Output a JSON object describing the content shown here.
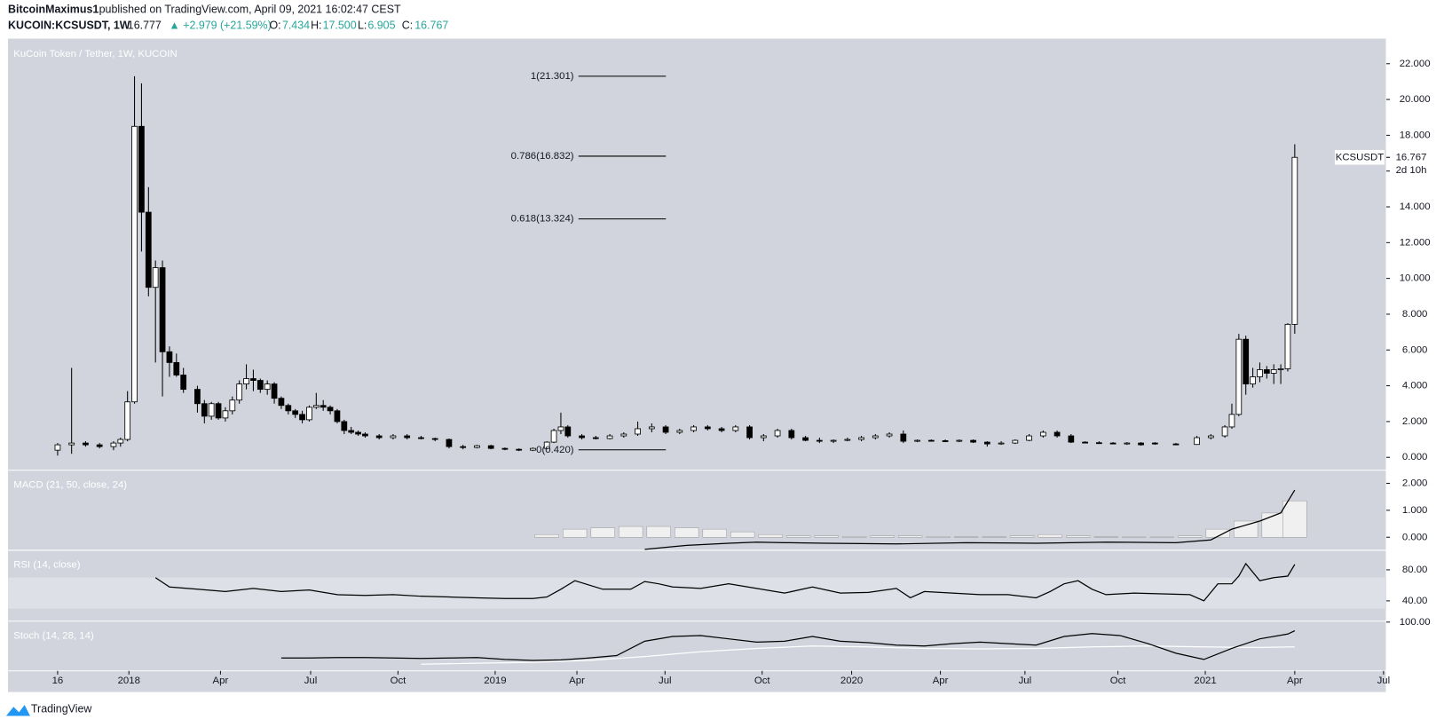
{
  "header": {
    "publisher": "BitcoinMaximus1",
    "published": "published on TradingView.com, April 09, 2021 16:02:47 CEST",
    "symbol": "KUCOIN:KCSUSDT, 1W",
    "last": "16.777",
    "change": "▲ +2.979 (+21.59%)",
    "o_label": "O:",
    "o": "7.434",
    "h_label": "H:",
    "h": "17.500",
    "l_label": "L:",
    "l": "6.905",
    "c_label": "C:",
    "c": "16.767"
  },
  "footer": {
    "brand": "TradingView"
  },
  "chart_data": [
    {
      "type": "candlestick",
      "title": "KuCoin Token / Tether, 1W, KUCOIN",
      "axis_unit": "USDT",
      "up_color": "#ffffff",
      "down_color": "#000000",
      "xlim": [
        -7.1,
        190.1
      ],
      "ylim": [
        -0.67,
        23.4
      ],
      "xticks": [
        {
          "value": 0,
          "label": "16"
        },
        {
          "value": 10.2,
          "label": "2018"
        },
        {
          "value": 23.3,
          "label": "Apr"
        },
        {
          "value": 36.2,
          "label": "Jul"
        },
        {
          "value": 48.7,
          "label": "Oct"
        },
        {
          "value": 62.6,
          "label": "2019"
        },
        {
          "value": 74.3,
          "label": "Apr"
        },
        {
          "value": 86.9,
          "label": "Jul"
        },
        {
          "value": 100.8,
          "label": "Oct"
        },
        {
          "value": 113.6,
          "label": "2020"
        },
        {
          "value": 126.3,
          "label": "Apr"
        },
        {
          "value": 138.4,
          "label": "Jul"
        },
        {
          "value": 151.7,
          "label": "Oct"
        },
        {
          "value": 164.2,
          "label": "2021"
        },
        {
          "value": 177,
          "label": "Apr"
        },
        {
          "value": 189.7,
          "label": "Jul"
        }
      ],
      "yticks": [
        {
          "value": 0,
          "label": "0.000"
        },
        {
          "value": 2,
          "label": "2.000"
        },
        {
          "value": 4,
          "label": "4.000"
        },
        {
          "value": 6,
          "label": "6.000"
        },
        {
          "value": 8,
          "label": "8.000"
        },
        {
          "value": 10,
          "label": "10.000"
        },
        {
          "value": 12,
          "label": "12.000"
        },
        {
          "value": 14,
          "label": "14.000"
        },
        {
          "value": 16,
          "label": "16.000"
        },
        {
          "value": 18,
          "label": "18.000"
        },
        {
          "value": 20,
          "label": "20.000"
        },
        {
          "value": 22,
          "label": "22.000"
        }
      ],
      "x": [
        0,
        2,
        4,
        6,
        8,
        9,
        10,
        11,
        12,
        13,
        14,
        15,
        16,
        17,
        18,
        20,
        21,
        22,
        23,
        24,
        25,
        26,
        27,
        28,
        29,
        30,
        31,
        32,
        33,
        34,
        35,
        36,
        37,
        38,
        39,
        40,
        41,
        42,
        43,
        44,
        46,
        48,
        50,
        52,
        54,
        56,
        58,
        60,
        62,
        64,
        66,
        68,
        70,
        71,
        72,
        73,
        75,
        77,
        79,
        81,
        83,
        85,
        87,
        89,
        91,
        93,
        95,
        97,
        99,
        101,
        103,
        105,
        107,
        109,
        111,
        113,
        115,
        117,
        119,
        121,
        123,
        125,
        127,
        129,
        131,
        133,
        135,
        137,
        139,
        141,
        143,
        145,
        147,
        149,
        151,
        153,
        155,
        157,
        160,
        163,
        165,
        167,
        168,
        169,
        170,
        171,
        172,
        173,
        174,
        175,
        176,
        177
      ],
      "open": [
        0.4,
        0.7,
        0.8,
        0.7,
        0.6,
        0.8,
        1.0,
        3.1,
        18.5,
        13.7,
        9.5,
        10.6,
        5.9,
        5.3,
        4.6,
        3.8,
        3.0,
        2.3,
        3.0,
        2.2,
        2.6,
        3.2,
        4.1,
        4.4,
        4.3,
        3.8,
        4.1,
        3.3,
        2.9,
        2.6,
        2.4,
        2.1,
        2.8,
        2.9,
        2.8,
        2.6,
        2.0,
        1.5,
        1.4,
        1.3,
        1.2,
        1.1,
        1.2,
        1.1,
        1.05,
        1.0,
        0.6,
        0.55,
        0.65,
        0.5,
        0.45,
        0.4,
        0.5,
        0.85,
        1.5,
        1.7,
        1.2,
        1.1,
        1.05,
        1.2,
        1.3,
        1.6,
        1.7,
        1.4,
        1.5,
        1.7,
        1.6,
        1.5,
        1.7,
        1.1,
        1.2,
        1.5,
        1.1,
        0.95,
        0.9,
        0.95,
        1.0,
        1.1,
        1.2,
        1.3,
        0.9,
        0.95,
        0.93,
        0.9,
        0.95,
        0.85,
        0.75,
        0.8,
        0.95,
        1.2,
        1.4,
        1.2,
        0.85,
        0.82,
        0.8,
        0.78,
        0.8,
        0.8,
        0.75,
        0.72,
        1.1,
        1.2,
        1.7,
        2.4,
        6.6,
        4.1,
        4.5,
        4.9,
        4.7,
        4.9,
        4.95,
        7.434
      ],
      "high": [
        0.8,
        5.0,
        0.9,
        0.8,
        0.9,
        1.1,
        3.7,
        21.3,
        20.9,
        15.1,
        11.0,
        11.0,
        6.2,
        5.8,
        5.0,
        4.0,
        3.2,
        3.1,
        3.1,
        2.8,
        3.4,
        4.3,
        5.2,
        4.9,
        4.4,
        4.3,
        4.2,
        3.4,
        3.0,
        2.7,
        2.6,
        2.9,
        3.6,
        3.2,
        2.9,
        2.7,
        2.1,
        1.7,
        1.5,
        1.4,
        1.3,
        1.3,
        1.3,
        1.2,
        1.1,
        1.05,
        0.7,
        0.7,
        0.7,
        0.55,
        0.5,
        0.55,
        0.9,
        1.6,
        2.5,
        1.8,
        1.3,
        1.2,
        1.3,
        1.4,
        2.0,
        1.9,
        1.8,
        1.6,
        1.8,
        1.8,
        1.7,
        1.8,
        1.8,
        1.3,
        1.6,
        1.6,
        1.2,
        1.1,
        1.0,
        1.1,
        1.2,
        1.3,
        1.4,
        1.5,
        1.0,
        1.0,
        1.0,
        1.0,
        1.0,
        0.9,
        0.9,
        1.0,
        1.3,
        1.5,
        1.5,
        1.3,
        0.9,
        0.9,
        0.85,
        0.85,
        0.85,
        0.85,
        0.8,
        1.2,
        1.3,
        1.8,
        3.0,
        6.9,
        6.8,
        5.0,
        5.3,
        5.1,
        5.2,
        5.2,
        7.5,
        17.5
      ],
      "low": [
        0.1,
        0.2,
        0.6,
        0.5,
        0.4,
        0.6,
        0.9,
        3.0,
        11.5,
        9.0,
        5.3,
        3.4,
        4.5,
        4.5,
        3.6,
        2.5,
        1.9,
        2.1,
        2.1,
        2.0,
        2.4,
        3.0,
        3.8,
        3.7,
        3.6,
        3.5,
        3.0,
        2.7,
        2.4,
        2.2,
        1.9,
        2.0,
        2.7,
        2.6,
        2.4,
        1.9,
        1.3,
        1.3,
        1.2,
        1.1,
        1.0,
        1.0,
        1.0,
        1.0,
        0.9,
        0.5,
        0.45,
        0.5,
        0.45,
        0.4,
        0.35,
        0.35,
        0.45,
        0.8,
        1.3,
        1.1,
        1.0,
        1.0,
        1.0,
        1.1,
        1.2,
        1.4,
        1.3,
        1.3,
        1.4,
        1.5,
        1.4,
        1.4,
        1.0,
        0.9,
        1.1,
        1.0,
        0.9,
        0.8,
        0.8,
        0.9,
        0.9,
        1.0,
        1.1,
        0.8,
        0.85,
        0.9,
        0.85,
        0.85,
        0.8,
        0.6,
        0.7,
        0.75,
        0.9,
        1.1,
        1.1,
        0.8,
        0.8,
        0.75,
        0.75,
        0.7,
        0.65,
        0.7,
        0.7,
        0.7,
        1.0,
        1.1,
        1.6,
        2.3,
        3.5,
        3.9,
        4.2,
        4.4,
        4.1,
        4.1,
        4.8,
        6.905
      ],
      "close": [
        0.7,
        0.8,
        0.7,
        0.6,
        0.8,
        1.0,
        3.1,
        18.5,
        13.7,
        9.5,
        10.6,
        5.9,
        5.3,
        4.6,
        3.8,
        3.0,
        2.3,
        3.0,
        2.2,
        2.6,
        3.2,
        4.1,
        4.4,
        4.3,
        3.8,
        4.1,
        3.3,
        2.9,
        2.6,
        2.4,
        2.1,
        2.8,
        2.9,
        2.8,
        2.6,
        2.0,
        1.5,
        1.4,
        1.3,
        1.2,
        1.1,
        1.2,
        1.1,
        1.05,
        1.0,
        0.6,
        0.55,
        0.65,
        0.5,
        0.45,
        0.4,
        0.5,
        0.85,
        1.5,
        1.7,
        1.2,
        1.1,
        1.05,
        1.2,
        1.3,
        1.6,
        1.7,
        1.4,
        1.5,
        1.7,
        1.6,
        1.5,
        1.7,
        1.1,
        1.2,
        1.5,
        1.1,
        0.95,
        0.9,
        0.95,
        1.0,
        1.1,
        1.2,
        1.3,
        0.9,
        0.95,
        0.93,
        0.9,
        0.95,
        0.85,
        0.75,
        0.8,
        0.95,
        1.2,
        1.4,
        1.2,
        0.85,
        0.82,
        0.8,
        0.78,
        0.8,
        0.7,
        0.75,
        0.72,
        1.1,
        1.2,
        1.7,
        2.4,
        6.6,
        4.1,
        4.5,
        4.9,
        4.7,
        4.9,
        4.95,
        7.434,
        16.767
      ],
      "fib_levels": [
        {
          "value": 21.301,
          "label": "1(21.301)"
        },
        {
          "value": 16.832,
          "label": "0.786(16.832)"
        },
        {
          "value": 13.324,
          "label": "0.618(13.324)"
        },
        {
          "value": 0.42,
          "label": "0(0.420)"
        }
      ],
      "price_tag": {
        "name": "KCSUSDT",
        "value": 16.767,
        "label": "16.767",
        "countdown": "2d 10h"
      }
    },
    {
      "type": "macd",
      "title": "MACD (21, 50, close, 24)",
      "xlim": [
        -7.1,
        190.1
      ],
      "ylim": [
        -0.45,
        2.45
      ],
      "yticks": [
        {
          "value": 0,
          "label": "0.000"
        },
        {
          "value": 1,
          "label": "1.000"
        },
        {
          "value": 2,
          "label": "2.000"
        }
      ],
      "histogram": {
        "color": "#f0f0f0",
        "x": [
          70,
          74,
          78,
          82,
          86,
          90,
          94,
          98,
          102,
          106,
          110,
          114,
          118,
          122,
          126,
          130,
          134,
          138,
          142,
          146,
          150,
          154,
          158,
          162,
          166,
          170,
          174,
          177
        ],
        "values": [
          0.1,
          0.3,
          0.35,
          0.4,
          0.4,
          0.35,
          0.3,
          0.2,
          0.1,
          0.05,
          0.05,
          0.03,
          0.05,
          0.05,
          0.03,
          0.02,
          0.02,
          0.05,
          0.1,
          0.05,
          0.02,
          0.01,
          0.01,
          0.05,
          0.3,
          0.6,
          0.9,
          1.35
        ]
      },
      "line": {
        "color": "#000000",
        "x": [
          84,
          90,
          96,
          100,
          104,
          110,
          120,
          130,
          140,
          150,
          160,
          165,
          168,
          172,
          175,
          177
        ],
        "values": [
          -0.45,
          -0.3,
          -0.22,
          -0.18,
          -0.2,
          -0.22,
          -0.25,
          -0.2,
          -0.22,
          -0.18,
          -0.2,
          -0.1,
          0.3,
          0.6,
          0.9,
          1.75
        ]
      }
    },
    {
      "type": "rsi",
      "title": "RSI (14, close)",
      "xlim": [
        -7.1,
        190.1
      ],
      "ylim": [
        15,
        104
      ],
      "band": [
        30,
        70
      ],
      "yticks": [
        {
          "value": 40,
          "label": "40.00"
        },
        {
          "value": 80,
          "label": "80.00"
        }
      ],
      "line": {
        "color": "#000000",
        "x": [
          14,
          16,
          20,
          24,
          28,
          32,
          36,
          40,
          44,
          48,
          52,
          56,
          60,
          64,
          68,
          70,
          72,
          74,
          78,
          82,
          84,
          86,
          88,
          92,
          96,
          100,
          104,
          108,
          112,
          116,
          120,
          122,
          124,
          128,
          132,
          136,
          140,
          142,
          144,
          146,
          148,
          150,
          154,
          158,
          162,
          164,
          166,
          168,
          169,
          170,
          172,
          174,
          176,
          177
        ],
        "values": [
          70,
          58,
          55,
          52,
          56,
          52,
          54,
          48,
          47,
          48,
          46,
          45,
          44,
          43,
          43,
          45,
          55,
          66,
          55,
          55,
          65,
          62,
          58,
          56,
          62,
          56,
          50,
          58,
          50,
          51,
          56,
          44,
          52,
          50,
          48,
          48,
          44,
          52,
          62,
          66,
          55,
          48,
          50,
          49,
          48,
          40,
          62,
          62,
          72,
          88,
          66,
          70,
          72,
          87
        ]
      }
    },
    {
      "type": "stoch",
      "title": "Stoch (14, 28, 14)",
      "xlim": [
        -7.1,
        190.1
      ],
      "ylim": [
        0,
        100
      ],
      "yticks": [
        {
          "value": 100,
          "label": "100.00"
        }
      ],
      "series": [
        {
          "color": "#000000",
          "x": [
            32,
            36,
            40,
            44,
            48,
            52,
            56,
            60,
            64,
            68,
            72,
            76,
            80,
            84,
            88,
            92,
            96,
            100,
            104,
            108,
            112,
            116,
            120,
            124,
            128,
            132,
            136,
            140,
            144,
            148,
            152,
            156,
            160,
            164,
            168,
            172,
            176,
            177
          ],
          "values": [
            25,
            25,
            26,
            26,
            25,
            24,
            25,
            26,
            22,
            20,
            21,
            25,
            30,
            60,
            70,
            72,
            65,
            58,
            60,
            70,
            60,
            57,
            52,
            50,
            55,
            58,
            55,
            52,
            70,
            76,
            72,
            55,
            35,
            22,
            45,
            65,
            75,
            82
          ]
        },
        {
          "color": "#ffffff",
          "x": [
            52,
            60,
            68,
            76,
            84,
            92,
            100,
            108,
            116,
            124,
            132,
            140,
            148,
            156,
            164,
            172,
            177
          ],
          "values": [
            12,
            14,
            16,
            20,
            28,
            38,
            45,
            50,
            48,
            45,
            44,
            45,
            48,
            50,
            48,
            47,
            48
          ]
        }
      ]
    }
  ]
}
